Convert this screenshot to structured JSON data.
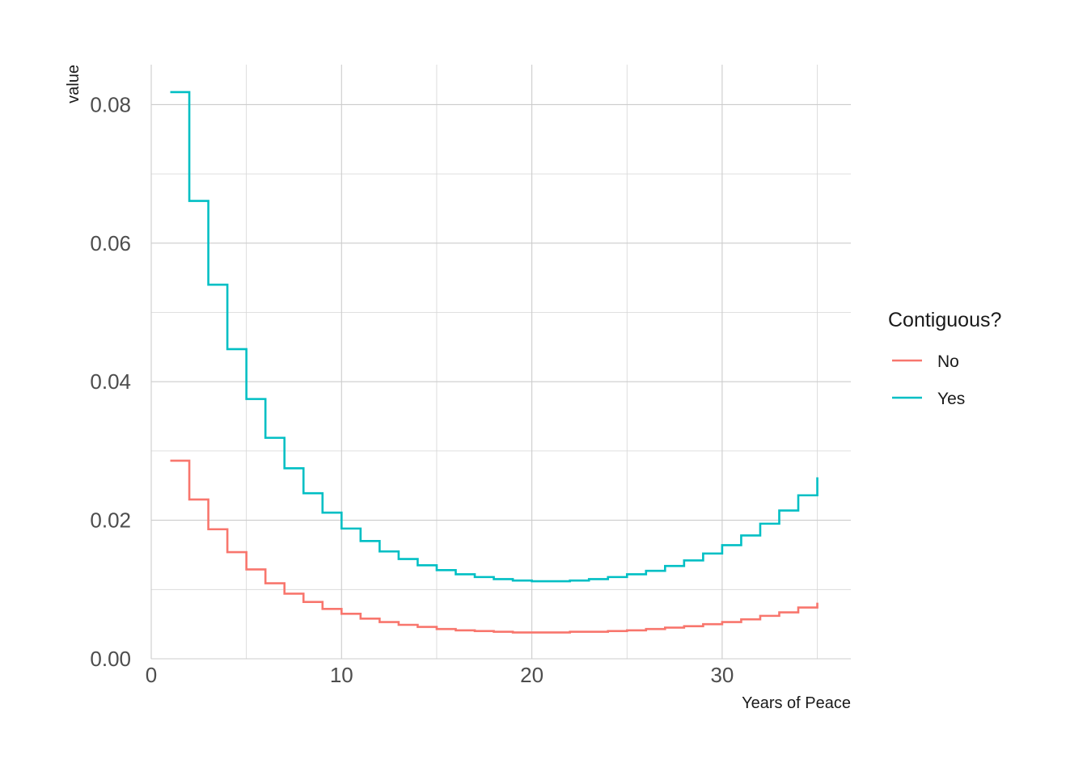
{
  "chart_data": {
    "type": "line",
    "step": true,
    "xlabel": "Years of Peace",
    "ylabel": "value",
    "xlim": [
      0,
      36
    ],
    "ylim": [
      0,
      0.0855
    ],
    "x_ticks": [
      0,
      10,
      20,
      30
    ],
    "x_tick_labels": [
      "0",
      "10",
      "20",
      "30"
    ],
    "y_ticks": [
      0,
      0.02,
      0.04,
      0.06,
      0.08
    ],
    "y_tick_labels": [
      "0.00",
      "0.02",
      "0.04",
      "0.06",
      "0.08"
    ],
    "grid": true,
    "legend": {
      "title": "Contiguous?",
      "position": "right"
    },
    "x": [
      1,
      2,
      3,
      4,
      5,
      6,
      7,
      8,
      9,
      10,
      11,
      12,
      13,
      14,
      15,
      16,
      17,
      18,
      19,
      20,
      21,
      22,
      23,
      24,
      25,
      26,
      27,
      28,
      29,
      30,
      31,
      32,
      33,
      34,
      35
    ],
    "series": [
      {
        "name": "No",
        "color": "#F8766D",
        "values": [
          0.0286,
          0.023,
          0.0187,
          0.0154,
          0.0129,
          0.0109,
          0.0094,
          0.0082,
          0.0072,
          0.0065,
          0.0058,
          0.0053,
          0.0049,
          0.0046,
          0.0043,
          0.0041,
          0.004,
          0.0039,
          0.0038,
          0.0038,
          0.0038,
          0.0039,
          0.0039,
          0.004,
          0.0041,
          0.0043,
          0.0045,
          0.0047,
          0.005,
          0.0053,
          0.0057,
          0.0062,
          0.0067,
          0.0074,
          0.0081
        ]
      },
      {
        "name": "Yes",
        "color": "#00BFC4",
        "values": [
          0.0818,
          0.0661,
          0.054,
          0.0447,
          0.0375,
          0.0319,
          0.0275,
          0.0239,
          0.0211,
          0.0188,
          0.017,
          0.0155,
          0.0144,
          0.0135,
          0.0128,
          0.0122,
          0.0118,
          0.0115,
          0.0113,
          0.0112,
          0.0112,
          0.0113,
          0.0115,
          0.0118,
          0.0122,
          0.0127,
          0.0134,
          0.0142,
          0.0152,
          0.0164,
          0.0178,
          0.0195,
          0.0214,
          0.0236,
          0.0262
        ]
      }
    ]
  }
}
